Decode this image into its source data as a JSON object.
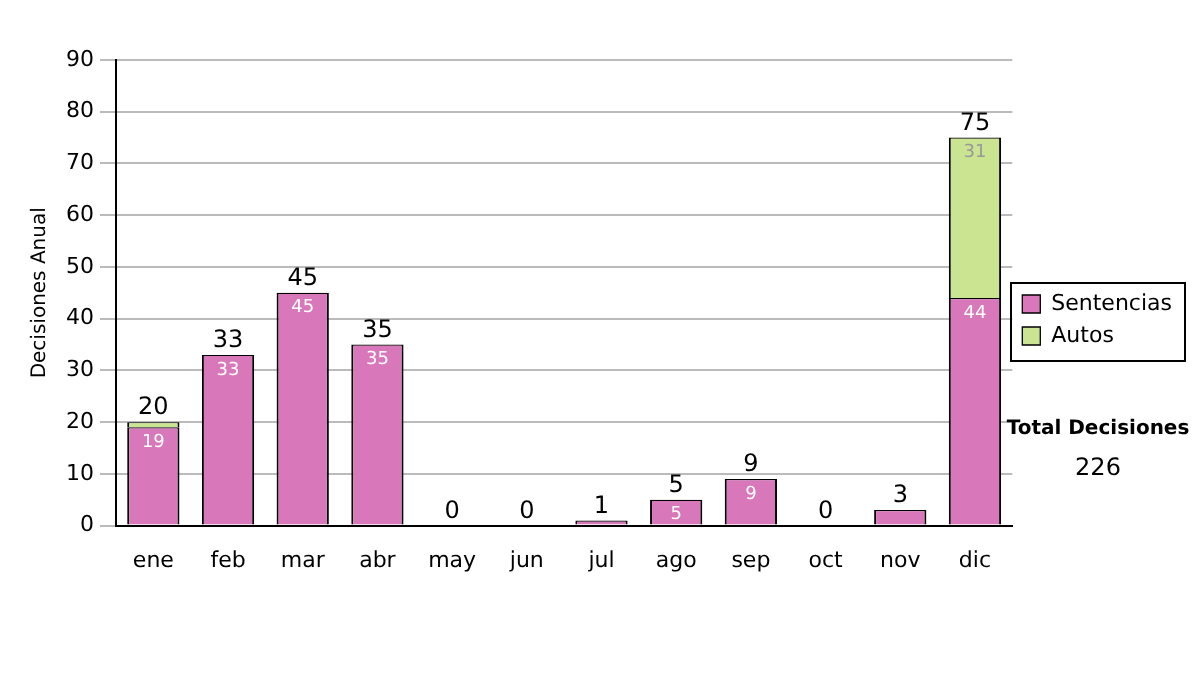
{
  "chart_data": {
    "type": "bar",
    "stacked": true,
    "ylabel": "Decisiones Anual",
    "categories": [
      "ene",
      "feb",
      "mar",
      "abr",
      "may",
      "jun",
      "jul",
      "ago",
      "sep",
      "oct",
      "nov",
      "dic"
    ],
    "series": [
      {
        "name": "Sentencias",
        "color": "#d977bb",
        "values": [
          19,
          33,
          45,
          35,
          0,
          0,
          1,
          5,
          9,
          0,
          3,
          44
        ],
        "value_labels": [
          "19",
          "33",
          "45",
          "35",
          null,
          null,
          null,
          "5",
          "9",
          null,
          null,
          "44"
        ]
      },
      {
        "name": "Autos",
        "color": "#cbe492",
        "values": [
          1,
          0,
          0,
          0,
          0,
          0,
          0,
          0,
          0,
          0,
          0,
          31
        ],
        "value_labels": [
          null,
          null,
          null,
          null,
          null,
          null,
          null,
          null,
          null,
          null,
          null,
          "31"
        ]
      }
    ],
    "totals": [
      "20",
      "33",
      "45",
      "35",
      "0",
      "0",
      "1",
      "5",
      "9",
      "0",
      "3",
      "75"
    ],
    "ylim": [
      0,
      90
    ],
    "yticks": [
      0,
      10,
      20,
      30,
      40,
      50,
      60,
      70,
      80,
      90
    ],
    "grid": "y",
    "legend": "right",
    "annotations": [
      "Total Decisiones",
      "226"
    ]
  }
}
